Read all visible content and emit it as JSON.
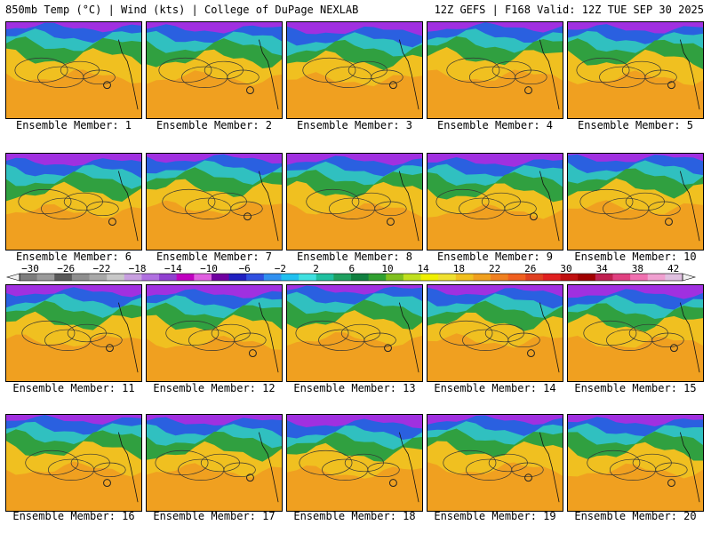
{
  "header": {
    "left": "850mb Temp (°C) | Wind (kts) | College of DuPage NEXLAB",
    "right": "12Z GEFS | F168 Valid: 12Z TUE SEP 30 2025"
  },
  "members": [
    "Ensemble Member: 1",
    "Ensemble Member: 2",
    "Ensemble Member: 3",
    "Ensemble Member: 4",
    "Ensemble Member: 5",
    "Ensemble Member: 6",
    "Ensemble Member: 7",
    "Ensemble Member: 8",
    "Ensemble Member: 9",
    "Ensemble Member: 10",
    "Ensemble Member: 11",
    "Ensemble Member: 12",
    "Ensemble Member: 13",
    "Ensemble Member: 14",
    "Ensemble Member: 15",
    "Ensemble Member: 16",
    "Ensemble Member: 17",
    "Ensemble Member: 18",
    "Ensemble Member: 19",
    "Ensemble Member: 20"
  ],
  "colorbar": {
    "labels": [
      "−30",
      "−26",
      "−22",
      "−18",
      "−14",
      "−10",
      "−6",
      "−2",
      "2",
      "6",
      "10",
      "14",
      "18",
      "22",
      "26",
      "30",
      "34",
      "38",
      "42"
    ],
    "colors": [
      "#7d7d7d",
      "#9a9a9a",
      "#5a5a5a",
      "#8e8e8e",
      "#a8a8a8",
      "#c8c8c8",
      "#c8a0e0",
      "#b070e0",
      "#9040d0",
      "#c000c0",
      "#e060e0",
      "#7000a0",
      "#2020c0",
      "#3050e0",
      "#3090f0",
      "#20c0f0",
      "#40e0e0",
      "#20c0a0",
      "#20a060",
      "#108040",
      "#30a030",
      "#80c020",
      "#c0e020",
      "#f0f000",
      "#f0e030",
      "#f0c020",
      "#f0a020",
      "#f08020",
      "#f06020",
      "#e04020",
      "#e02020",
      "#c01010",
      "#a00000",
      "#c02050",
      "#e04080",
      "#f070b0",
      "#f0a0d0",
      "#e0c0e0"
    ]
  },
  "colors": {
    "cold_band": "#a030e0",
    "cool_band": "#2a60e0",
    "mid_band": "#30c0c0",
    "green_band": "#30a040",
    "warm_band": "#f0c020",
    "hot_band": "#f0a020"
  }
}
